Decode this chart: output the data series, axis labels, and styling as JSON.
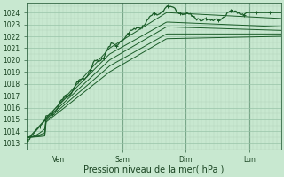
{
  "xlabel": "Pression niveau de la mer( hPa )",
  "ylim_min": 1012.5,
  "ylim_max": 1024.8,
  "yticks": [
    1013,
    1014,
    1015,
    1016,
    1017,
    1018,
    1019,
    1020,
    1021,
    1022,
    1023,
    1024
  ],
  "xtick_positions": [
    0.5,
    1.5,
    2.5,
    3.5
  ],
  "xtick_labels": [
    "Ven",
    "Sam",
    "Dim",
    "Lun"
  ],
  "background_color": "#c8e8d0",
  "grid_minor_color": "#b0d4bb",
  "grid_major_color": "#98c4a8",
  "line_color": "#1a5c28",
  "vline_color": "#336644",
  "xlabel_fontsize": 7,
  "tick_fontsize": 5.5
}
